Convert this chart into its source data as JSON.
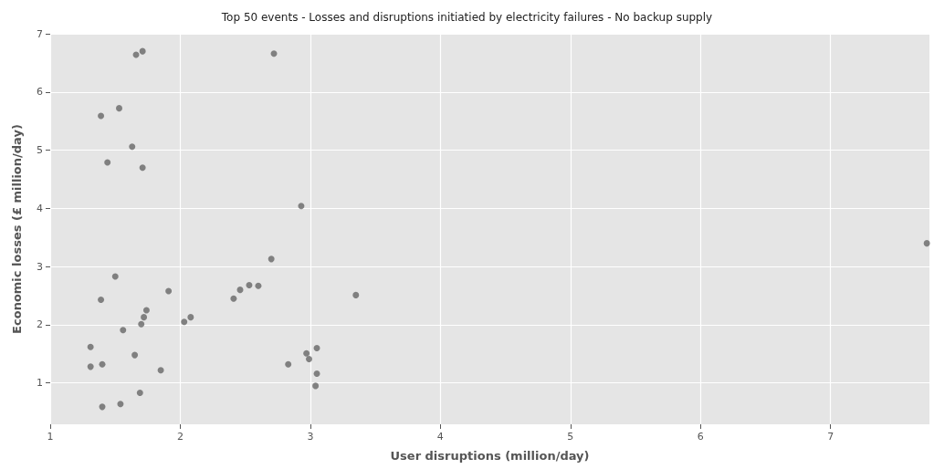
{
  "chart_data": {
    "type": "scatter",
    "title": "Top 50 events - Losses and disruptions initiatied by electricity failures - No backup supply",
    "xlabel": "User disruptions (million/day)",
    "ylabel": "Economic losses (£ million/day)",
    "x": [
      1.66,
      1.71,
      2.72,
      1.39,
      1.53,
      1.63,
      1.44,
      1.71,
      2.93,
      2.7,
      7.74,
      1.91,
      2.41,
      2.46,
      2.53,
      2.6,
      3.35,
      2.03,
      2.08,
      3.05,
      2.97,
      2.99,
      2.83,
      3.05,
      3.04,
      1.5,
      1.39,
      1.74,
      1.72,
      1.7,
      1.56,
      1.31,
      1.65,
      1.31,
      1.4,
      1.85,
      1.69,
      1.54,
      1.4
    ],
    "values": [
      6.64,
      6.7,
      6.66,
      5.59,
      5.72,
      5.06,
      4.79,
      4.7,
      4.04,
      3.13,
      3.4,
      2.58,
      2.45,
      2.6,
      2.68,
      2.67,
      2.51,
      2.05,
      2.13,
      1.6,
      1.51,
      1.41,
      1.32,
      1.16,
      0.95,
      2.83,
      2.43,
      2.25,
      2.13,
      2.01,
      1.91,
      1.62,
      1.48,
      1.28,
      1.32,
      1.22,
      0.83,
      0.64,
      0.59
    ],
    "color": "#555555",
    "marker": "circle",
    "xlim": [
      1,
      7.76
    ],
    "xticks": [
      1,
      2,
      3,
      4,
      5,
      6,
      7
    ],
    "ylim": [
      0.29,
      7
    ],
    "yticks": [
      1,
      2,
      3,
      4,
      5,
      6,
      7
    ],
    "grid": true
  }
}
